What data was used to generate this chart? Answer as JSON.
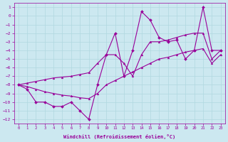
{
  "x_data": [
    0,
    1,
    2,
    3,
    4,
    5,
    6,
    7,
    8,
    9,
    10,
    11,
    12,
    13,
    14,
    15,
    16,
    17,
    18,
    19,
    20,
    21,
    22,
    23
  ],
  "y_main": [
    -8,
    -8.5,
    -10,
    -10,
    -10.5,
    -10.5,
    -10,
    -11,
    -12,
    -8,
    -4.5,
    -2,
    -7,
    -4,
    0.5,
    -0.5,
    -2.5,
    -3,
    -2.8,
    -5,
    -4,
    1,
    -4,
    -4
  ],
  "y_upper": [
    -8,
    -7.8,
    -7.6,
    -7.4,
    -7.2,
    -7.1,
    -7.0,
    -6.8,
    -6.6,
    -5.5,
    -4.5,
    -4.5,
    -5.5,
    -7.0,
    -4.5,
    -3.0,
    -3.0,
    -2.8,
    -2.5,
    -2.2,
    -2.0,
    -2.0,
    -5.0,
    -4.0
  ],
  "y_lower": [
    -8,
    -8.2,
    -8.5,
    -8.8,
    -9.0,
    -9.2,
    -9.3,
    -9.5,
    -9.6,
    -9.0,
    -8.0,
    -7.5,
    -7.0,
    -6.5,
    -6.0,
    -5.5,
    -5.0,
    -4.8,
    -4.5,
    -4.2,
    -4.0,
    -3.8,
    -5.5,
    -4.5
  ],
  "line_color": "#990099",
  "bg_color": "#cce8f0",
  "grid_color": "#b0d8e0",
  "xlabel": "Windchill (Refroidissement éolien,°C)",
  "xlim": [
    -0.5,
    23.5
  ],
  "ylim": [
    -12.5,
    1.5
  ],
  "yticks": [
    1,
    0,
    -1,
    -2,
    -3,
    -4,
    -5,
    -6,
    -7,
    -8,
    -9,
    -10,
    -11,
    -12
  ],
  "xticks": [
    0,
    1,
    2,
    3,
    4,
    5,
    6,
    7,
    8,
    9,
    10,
    11,
    12,
    13,
    14,
    15,
    16,
    17,
    18,
    19,
    20,
    21,
    22,
    23
  ]
}
